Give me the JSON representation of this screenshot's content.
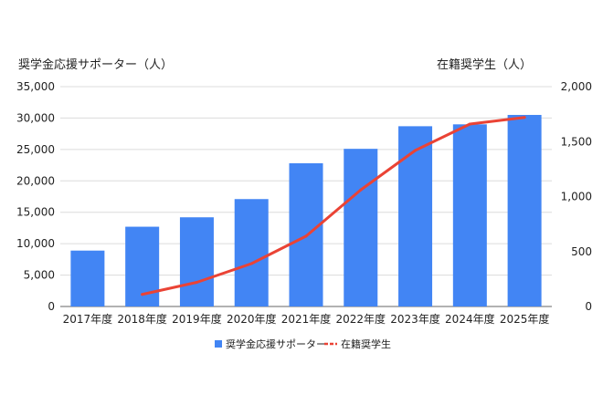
{
  "chart_data": {
    "type": "bar",
    "categories": [
      "2017年度",
      "2018年度",
      "2019年度",
      "2020年度",
      "2021年度",
      "2022年度",
      "2023年度",
      "2024年度",
      "2025年度"
    ],
    "series": [
      {
        "name": "奨学金応援サポーター",
        "type": "bar",
        "axis": "left",
        "color": "#4285f4",
        "values": [
          8900,
          12700,
          14200,
          17100,
          22800,
          25100,
          28700,
          29000,
          30500
        ]
      },
      {
        "name": "在籍奨学生",
        "type": "line",
        "axis": "right",
        "color": "#ea4335",
        "values": [
          null,
          110,
          220,
          390,
          640,
          1060,
          1420,
          1660,
          1720
        ]
      }
    ],
    "ylabel": "奨学金応援サポーター（人）",
    "y2label": "在籍奨学生（人）",
    "ylim": [
      0,
      35000
    ],
    "y2lim": [
      0,
      2000
    ],
    "yticks": [
      "0",
      "5,000",
      "10,000",
      "15,000",
      "20,000",
      "25,000",
      "30,000",
      "35,000"
    ],
    "y2ticks": [
      "0",
      "500",
      "1,000",
      "1,500",
      "2,000"
    ],
    "grid": true,
    "legend": "bottom"
  }
}
